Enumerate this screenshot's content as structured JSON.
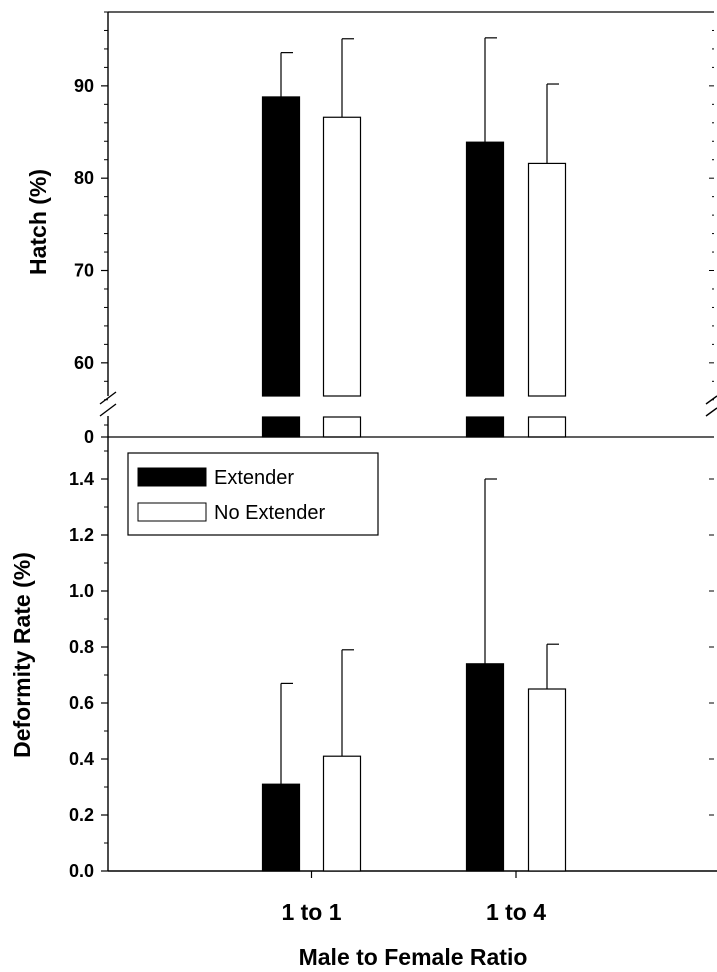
{
  "chart_data": [
    {
      "type": "bar",
      "panel": "top",
      "categories": [
        "1 to 1",
        "1 to 4"
      ],
      "ylabel": "Hatch (%)",
      "ylim": [
        0,
        98
      ],
      "axis_break": [
        0,
        55
      ],
      "yticks": [
        0,
        60,
        70,
        80,
        90
      ],
      "series": [
        {
          "name": "Extender",
          "color": "#000000",
          "values": [
            88.8,
            83.9
          ],
          "errors": [
            4.8,
            11.3
          ]
        },
        {
          "name": "No Extender",
          "color": "#ffffff",
          "values": [
            86.6,
            81.6
          ],
          "errors": [
            8.5,
            8.6
          ]
        }
      ]
    },
    {
      "type": "bar",
      "panel": "bottom",
      "categories": [
        "1 to 1",
        "1 to 4"
      ],
      "xlabel": "Male to Female Ratio",
      "ylabel": "Deformity Rate (%)",
      "ylim": [
        0,
        1.55
      ],
      "yticks": [
        "0.0",
        "0.2",
        "0.4",
        "0.6",
        "0.8",
        "1.0",
        "1.2",
        "1.4"
      ],
      "legend_position": "top-left",
      "series": [
        {
          "name": "Extender",
          "color": "#000000",
          "values": [
            0.31,
            0.74
          ],
          "errors": [
            0.36,
            0.66
          ]
        },
        {
          "name": "No Extender",
          "color": "#ffffff",
          "values": [
            0.41,
            0.65
          ],
          "errors": [
            0.38,
            0.16
          ]
        }
      ]
    }
  ],
  "legend": {
    "entries": [
      "Extender",
      "No Extender"
    ]
  }
}
